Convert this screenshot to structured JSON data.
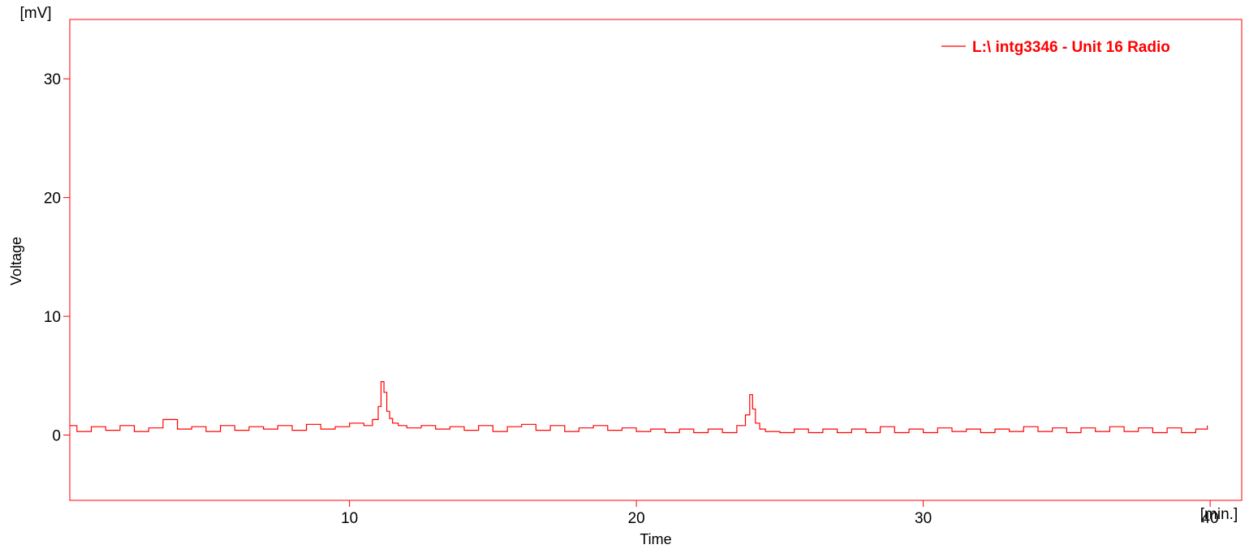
{
  "colors": {
    "series": "#ff0000",
    "axis": "#ff0000",
    "text": "#000000",
    "background": "#ffffff"
  },
  "chart_data": {
    "type": "line",
    "xlabel": "Time",
    "ylabel": "Voltage",
    "x_unit": "[min.]",
    "y_unit": "[mV]",
    "xlim": [
      0.25,
      41.1
    ],
    "ylim": [
      -5.5,
      35
    ],
    "x_ticks": [
      10,
      20,
      30,
      40
    ],
    "y_ticks": [
      0,
      10,
      20,
      30
    ],
    "grid": false,
    "legend": "top-right",
    "series": [
      {
        "name": "L:\\ intg3346 - Unit 16 Radio",
        "x": [
          0.25,
          0.5,
          1.0,
          1.5,
          2.0,
          2.5,
          3.0,
          3.5,
          4.0,
          4.5,
          5.0,
          5.5,
          6.0,
          6.5,
          7.0,
          7.5,
          8.0,
          8.5,
          9.0,
          9.5,
          10.0,
          10.5,
          10.8,
          11.0,
          11.1,
          11.2,
          11.3,
          11.4,
          11.5,
          11.7,
          12.0,
          12.5,
          13.0,
          13.5,
          14.0,
          14.5,
          15.0,
          15.5,
          16.0,
          16.5,
          17.0,
          17.5,
          18.0,
          18.5,
          19.0,
          19.5,
          20.0,
          20.5,
          21.0,
          21.5,
          22.0,
          22.5,
          23.0,
          23.5,
          23.8,
          23.95,
          24.05,
          24.15,
          24.3,
          24.5,
          25.0,
          25.5,
          26.0,
          26.5,
          27.0,
          27.5,
          28.0,
          28.5,
          29.0,
          29.5,
          30.0,
          30.5,
          31.0,
          31.5,
          32.0,
          32.5,
          33.0,
          33.5,
          34.0,
          34.5,
          35.0,
          35.5,
          36.0,
          36.5,
          37.0,
          37.5,
          38.0,
          38.5,
          39.0,
          39.5,
          39.9
        ],
        "y": [
          0.8,
          0.3,
          0.7,
          0.4,
          0.8,
          0.3,
          0.6,
          1.3,
          0.5,
          0.7,
          0.3,
          0.8,
          0.4,
          0.7,
          0.5,
          0.8,
          0.4,
          0.9,
          0.5,
          0.7,
          1.0,
          0.8,
          1.3,
          2.4,
          4.5,
          3.6,
          2.0,
          1.4,
          1.0,
          0.8,
          0.6,
          0.8,
          0.5,
          0.7,
          0.4,
          0.8,
          0.3,
          0.7,
          0.9,
          0.4,
          0.8,
          0.3,
          0.6,
          0.8,
          0.4,
          0.6,
          0.3,
          0.5,
          0.2,
          0.5,
          0.2,
          0.5,
          0.2,
          0.8,
          1.7,
          3.4,
          2.2,
          1.0,
          0.5,
          0.3,
          0.2,
          0.5,
          0.2,
          0.5,
          0.2,
          0.5,
          0.2,
          0.7,
          0.2,
          0.5,
          0.2,
          0.6,
          0.3,
          0.5,
          0.2,
          0.5,
          0.3,
          0.7,
          0.3,
          0.6,
          0.2,
          0.6,
          0.3,
          0.7,
          0.3,
          0.6,
          0.2,
          0.6,
          0.2,
          0.5,
          0.8
        ]
      }
    ]
  }
}
